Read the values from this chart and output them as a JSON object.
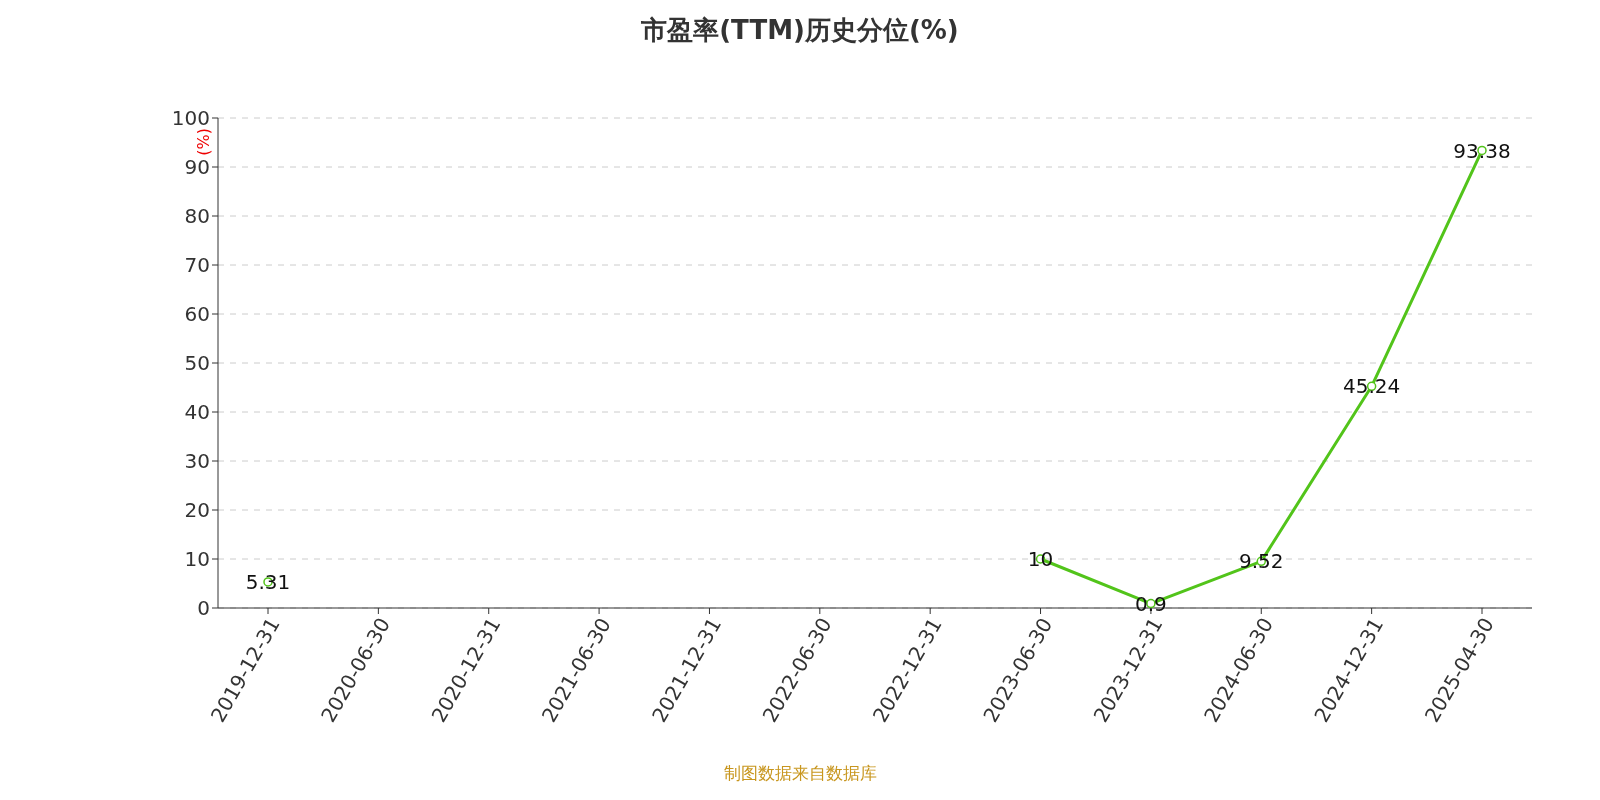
{
  "chart_data": {
    "type": "line",
    "title": "市盈率(TTM)历史分位(%)",
    "ylabel": "(%)",
    "categories": [
      "2019-12-31",
      "2020-06-30",
      "2020-12-31",
      "2021-06-30",
      "2021-12-31",
      "2022-06-30",
      "2022-12-31",
      "2023-06-30",
      "2023-12-31",
      "2024-06-30",
      "2024-12-31",
      "2025-04-30"
    ],
    "series": [
      {
        "color": "#52c41a",
        "values": [
          5.31,
          null,
          null,
          null,
          null,
          null,
          null,
          10,
          0.9,
          9.52,
          45.24,
          93.38
        ]
      }
    ],
    "ylim": [
      0,
      100
    ],
    "yticks": [
      0,
      10,
      20,
      30,
      40,
      50,
      60,
      70,
      80,
      90,
      100
    ],
    "grid": "y",
    "marker": "circle",
    "line_style": "solid",
    "data_labels": true,
    "legend": false,
    "annotations": [
      "制图数据来自数据库"
    ]
  }
}
